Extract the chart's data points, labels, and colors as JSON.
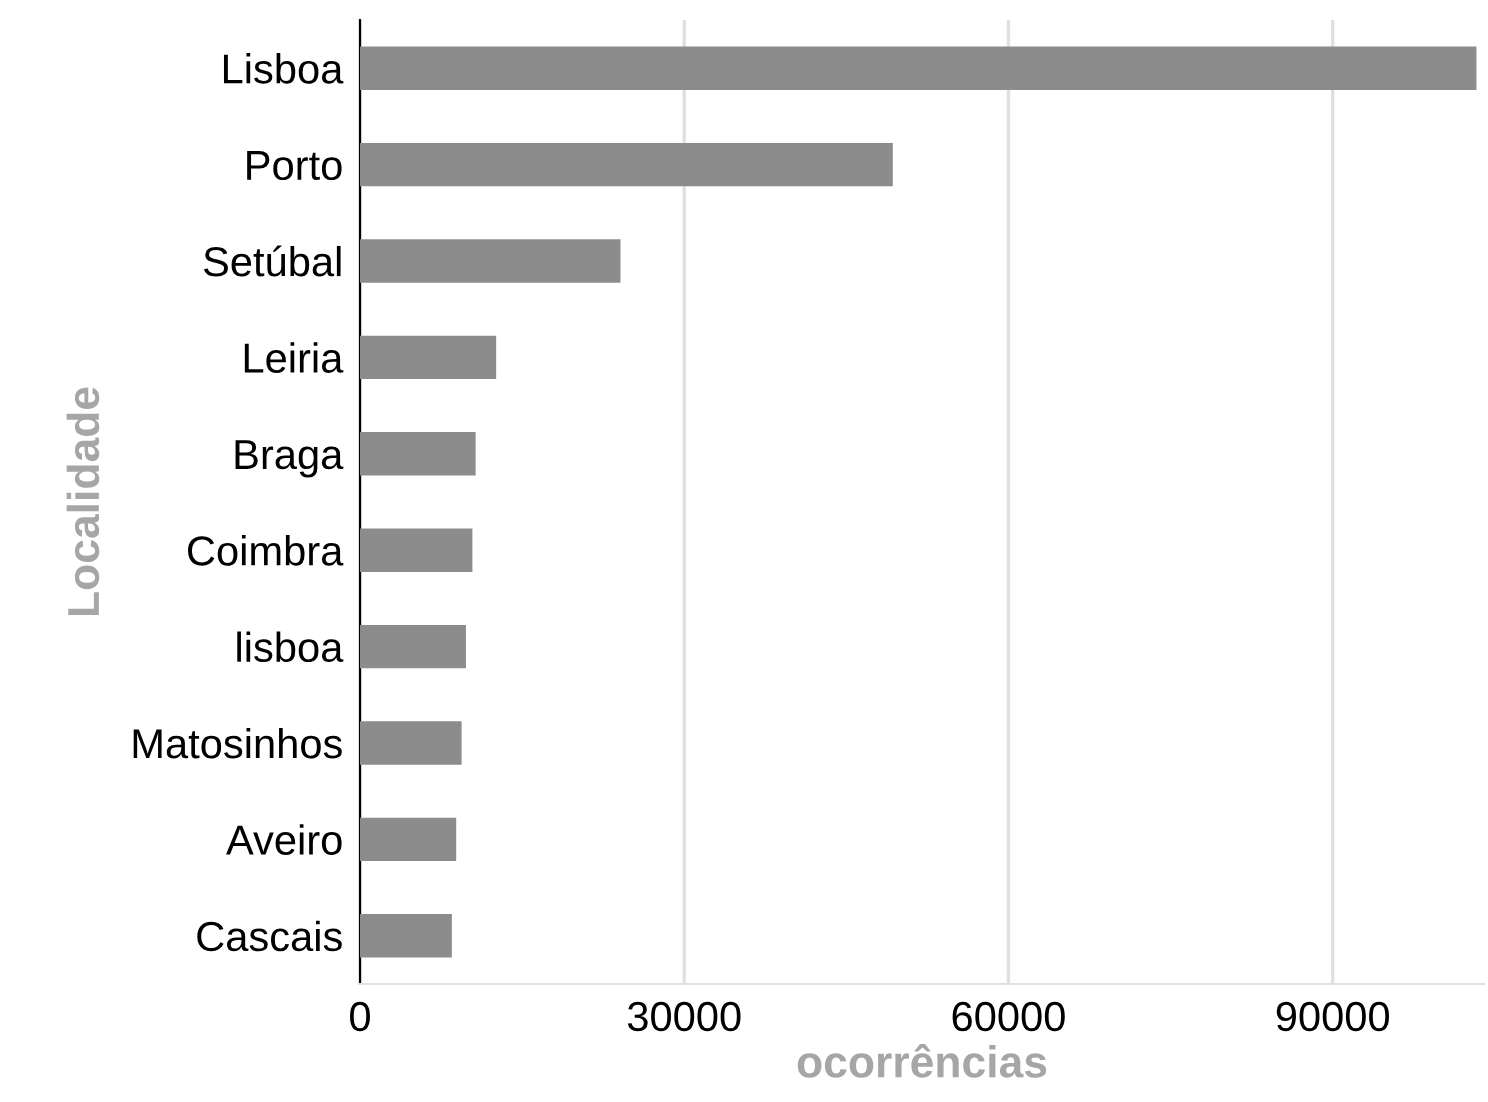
{
  "chart_data": {
    "type": "bar",
    "orientation": "horizontal",
    "xlabel": "ocorrências",
    "ylabel": "Localidade",
    "categories": [
      "Lisboa",
      "Porto",
      "Setúbal",
      "Leiria",
      "Braga",
      "Coimbra",
      "lisboa",
      "Matosinhos",
      "Aveiro",
      "Cascais"
    ],
    "values": [
      103300,
      49300,
      24100,
      12600,
      10700,
      10400,
      9800,
      9400,
      8900,
      8500
    ],
    "color": "#8c8c8c",
    "xlim": [
      0,
      104000
    ],
    "xticks": [
      0,
      30000,
      60000,
      90000
    ],
    "grid": "x",
    "legend": false
  }
}
